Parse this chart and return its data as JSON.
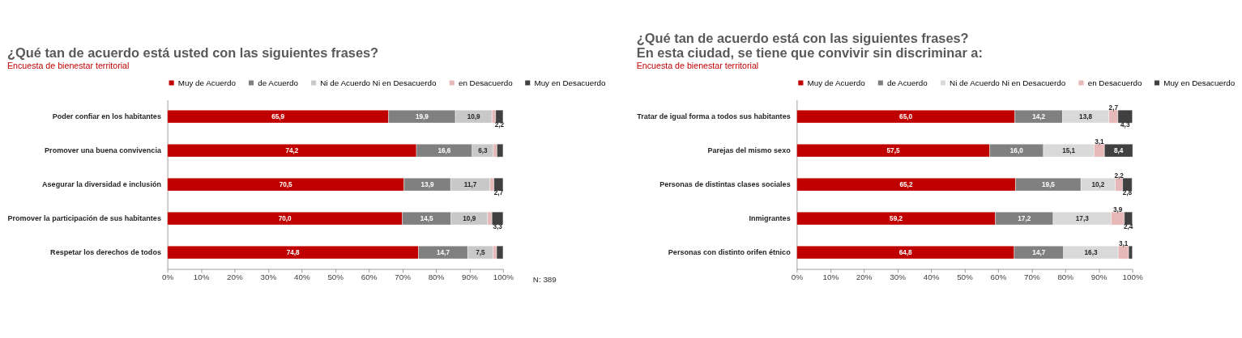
{
  "chart_data": [
    {
      "type": "bar",
      "orientation": "horizontal",
      "stacked": true,
      "title": "¿Qué tan de acuerdo está usted con las siguientes frases?",
      "subtitle": "Encuesta de bienestar territorial",
      "categories": [
        "Poder confiar en los habitantes",
        "Promover una buena convivencia",
        "Asegurar la diversidad e inclusión",
        "Promover la participación de sus habitantes",
        "Respetar los derechos de todos"
      ],
      "series": [
        {
          "name": "Muy de Acuerdo",
          "color": "#c00000",
          "values": [
            65.9,
            74.2,
            70.5,
            70.0,
            74.8
          ],
          "value_labels": [
            "65,9",
            "74,2",
            "70,5",
            "70,0",
            "74,8"
          ]
        },
        {
          "name": "de Acuerdo",
          "color": "#808080",
          "values": [
            19.9,
            16.6,
            13.9,
            14.5,
            14.7
          ],
          "value_labels": [
            "19,9",
            "16,6",
            "13,9",
            "14,5",
            "14,7"
          ]
        },
        {
          "name": "Ni de Acuerdo Ni en Desacuerdo",
          "color": "#c8c8c8",
          "values": [
            10.9,
            6.3,
            11.7,
            10.9,
            7.5
          ],
          "value_labels": [
            "10,9",
            "6,3",
            "11,7",
            "10,9",
            "7,5"
          ]
        },
        {
          "name": "en Desacuerdo",
          "color": "#e6b8b7",
          "values": [
            1.1,
            1.1,
            1.2,
            1.3,
            1.1
          ],
          "value_labels": [
            null,
            null,
            null,
            null,
            null
          ]
        },
        {
          "name": "Muy en Desacuerdo",
          "color": "#404040",
          "values": [
            2.2,
            1.8,
            2.7,
            3.3,
            1.9
          ],
          "value_labels": [
            "2,2",
            null,
            "2,7",
            "3,3",
            null
          ]
        }
      ],
      "xlim": [
        0,
        100
      ],
      "xticks": [
        {
          "value": 0,
          "label": "0%"
        },
        {
          "value": 10,
          "label": "10%"
        },
        {
          "value": 20,
          "label": "20%"
        },
        {
          "value": 30,
          "label": "30%"
        },
        {
          "value": 40,
          "label": "40%"
        },
        {
          "value": 50,
          "label": "50%"
        },
        {
          "value": 60,
          "label": "60%"
        },
        {
          "value": 70,
          "label": "70%"
        },
        {
          "value": 80,
          "label": "80%"
        },
        {
          "value": 90,
          "label": "90%"
        },
        {
          "value": 100,
          "label": "100%"
        }
      ],
      "legend": "top",
      "grid": false,
      "annotations": [
        "N: 389"
      ]
    },
    {
      "type": "bar",
      "orientation": "horizontal",
      "stacked": true,
      "title": "¿Qué tan de acuerdo está con las siguientes frases?\nEn esta ciudad, se tiene que convivir sin discriminar a:",
      "subtitle": "Encuesta de bienestar territorial",
      "categories": [
        "Tratar de igual forma a todos sus habitantes",
        "Parejas del mismo sexo",
        "Personas de distintas clases sociales",
        "Inmigrantes",
        "Personas con distinto orifen étnico"
      ],
      "series": [
        {
          "name": "Muy de Acuerdo",
          "color": "#c00000",
          "values": [
            65.0,
            57.5,
            65.2,
            59.2,
            64.8
          ],
          "value_labels": [
            "65,0",
            "57,5",
            "65,2",
            "59,2",
            "64,8"
          ]
        },
        {
          "name": "de Acuerdo",
          "color": "#808080",
          "values": [
            14.2,
            16.0,
            19.5,
            17.2,
            14.7
          ],
          "value_labels": [
            "14,2",
            "16,0",
            "19,5",
            "17,2",
            "14,7"
          ]
        },
        {
          "name": "Ni de Acuerdo Ni en Desacuerdo",
          "color": "#d9d9d9",
          "values": [
            13.8,
            15.1,
            10.2,
            17.3,
            16.3
          ],
          "value_labels": [
            "13,8",
            "15,1",
            "10,2",
            "17,3",
            "16,3"
          ]
        },
        {
          "name": "en Desacuerdo",
          "color": "#e6b8b7",
          "values": [
            2.7,
            3.1,
            2.2,
            3.9,
            3.1
          ],
          "value_labels": [
            "2,7",
            "3,1",
            "2,2",
            "3,9",
            "3,1"
          ]
        },
        {
          "name": "Muy en Desacuerdo",
          "color": "#404040",
          "values": [
            4.3,
            8.4,
            2.8,
            2.4,
            1.1
          ],
          "value_labels": [
            "4,3",
            "8,4",
            "2,8",
            "2,4",
            null
          ]
        }
      ],
      "xlim": [
        0,
        100
      ],
      "xticks": [
        {
          "value": 0,
          "label": "0%"
        },
        {
          "value": 10,
          "label": "10%"
        },
        {
          "value": 20,
          "label": "20%"
        },
        {
          "value": 30,
          "label": "30%"
        },
        {
          "value": 40,
          "label": "40%"
        },
        {
          "value": 50,
          "label": "50%"
        },
        {
          "value": 60,
          "label": "60%"
        },
        {
          "value": 70,
          "label": "70%"
        },
        {
          "value": 80,
          "label": "80%"
        },
        {
          "value": 90,
          "label": "90%"
        },
        {
          "value": 100,
          "label": "100%"
        }
      ],
      "legend": "top",
      "grid": false
    }
  ]
}
